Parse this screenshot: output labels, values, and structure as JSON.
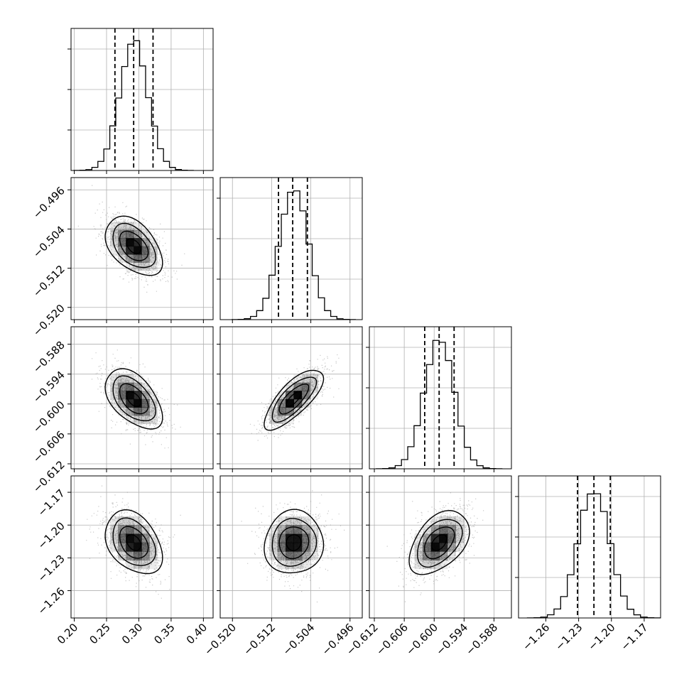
{
  "chart_data": {
    "type": "corner",
    "grid": true,
    "parameters": [
      {
        "range": [
          0.195,
          0.415
        ],
        "ticks": [
          {
            "v": 0.2,
            "label": "0.20"
          },
          {
            "v": 0.25,
            "label": "0.25"
          },
          {
            "v": 0.3,
            "label": "0.30"
          },
          {
            "v": 0.35,
            "label": "0.35"
          },
          {
            "v": 0.4,
            "label": "0.40"
          }
        ],
        "mean": 0.292,
        "std": 0.022,
        "quantiles": [
          0.263,
          0.292,
          0.322
        ]
      },
      {
        "range": [
          -0.5225,
          -0.4935
        ],
        "ticks": [
          {
            "v": -0.52,
            "label": "−0.520"
          },
          {
            "v": -0.512,
            "label": "−0.512"
          },
          {
            "v": -0.504,
            "label": "−0.504"
          },
          {
            "v": -0.496,
            "label": "−0.496"
          }
        ],
        "mean": -0.5075,
        "std": 0.003,
        "quantiles": [
          -0.5106,
          -0.5077,
          -0.5047
        ]
      },
      {
        "range": [
          -0.613,
          -0.5845
        ],
        "ticks": [
          {
            "v": -0.612,
            "label": "−0.612"
          },
          {
            "v": -0.606,
            "label": "−0.606"
          },
          {
            "v": -0.6,
            "label": "−0.600"
          },
          {
            "v": -0.594,
            "label": "−0.594"
          },
          {
            "v": -0.588,
            "label": "−0.588"
          }
        ],
        "mean": -0.599,
        "std": 0.003,
        "quantiles": [
          -0.6019,
          -0.599,
          -0.596
        ]
      },
      {
        "range": [
          -1.285,
          -1.155
        ],
        "ticks": [
          {
            "v": -1.26,
            "label": "−1.26"
          },
          {
            "v": -1.23,
            "label": "−1.23"
          },
          {
            "v": -1.2,
            "label": "−1.20"
          },
          {
            "v": -1.17,
            "label": "−1.17"
          }
        ],
        "mean": -1.216,
        "std": 0.0145,
        "quantiles": [
          -1.231,
          -1.216,
          -1.201
        ]
      }
    ],
    "correlations": [
      {
        "pair": [
          1,
          0
        ],
        "rho": -0.45
      },
      {
        "pair": [
          2,
          0
        ],
        "rho": -0.5
      },
      {
        "pair": [
          2,
          1
        ],
        "rho": 0.75
      },
      {
        "pair": [
          3,
          0
        ],
        "rho": -0.35
      },
      {
        "pair": [
          3,
          1
        ],
        "rho": 0.05
      },
      {
        "pair": [
          3,
          2
        ],
        "rho": 0.45
      }
    ],
    "contour_levels_sigma": [
      0.5,
      1.0,
      1.5,
      2.0
    ],
    "histogram_bins": 20
  },
  "colors": {
    "points": "#9a9a9a",
    "density_dark": "#000000",
    "grid": "#b0b0b0",
    "lines": "#000000"
  }
}
